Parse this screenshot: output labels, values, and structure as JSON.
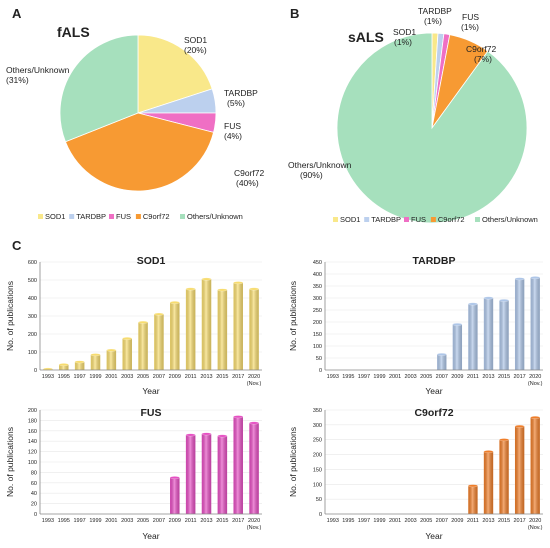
{
  "panels": {
    "a": "A",
    "b": "B",
    "c": "C"
  },
  "chart_data": [
    {
      "type": "pie",
      "title": "fALS",
      "labels": [
        "SOD1",
        "TARDBP",
        "FUS",
        "C9orf72",
        "Others/Unknown"
      ],
      "values": [
        20,
        5,
        4,
        40,
        31
      ],
      "label_values": [
        "(20%)",
        "(5%)",
        "(4%)",
        "(40%)",
        "(31%)"
      ],
      "colors": [
        "#f9e88a",
        "#bcd0ee",
        "#ef6fc4",
        "#f79a33",
        "#a6e0bd"
      ],
      "legend": [
        "SOD1",
        "TARDBP",
        "FUS",
        "C9orf72",
        "Others/Unknown"
      ],
      "legend_position": "bottom"
    },
    {
      "type": "pie",
      "title": "sALS",
      "labels": [
        "SOD1",
        "TARDBP",
        "FUS",
        "C9orf72",
        "Others/Unknown"
      ],
      "values": [
        1,
        1,
        1,
        7,
        90
      ],
      "label_values": [
        "(1%)",
        "(1%)",
        "(1%)",
        "(7%)",
        "(90%)"
      ],
      "colors": [
        "#f9e88a",
        "#bcd0ee",
        "#ef6fc4",
        "#f79a33",
        "#a6e0bd"
      ],
      "legend": [
        "SOD1",
        "TARDBP",
        "FUS",
        "C9orf72",
        "Others/Unknown"
      ],
      "legend_position": "bottom"
    },
    {
      "type": "bar",
      "title": "SOD1",
      "xlabel": "Year",
      "ylabel": "No. of publications",
      "categories": [
        "1993",
        "1995",
        "1997",
        "1999",
        "2001",
        "2003",
        "2005",
        "2007",
        "2009",
        "2011",
        "2013",
        "2015",
        "2017",
        "2020"
      ],
      "category_note": "(Nov.)",
      "values": [
        5,
        30,
        45,
        85,
        110,
        175,
        265,
        310,
        375,
        450,
        505,
        445,
        485,
        450
      ],
      "ylim": [
        0,
        600
      ],
      "yticks": [
        0,
        100,
        200,
        300,
        400,
        500,
        600
      ],
      "color": "#f7dc6f"
    },
    {
      "type": "bar",
      "title": "TARDBP",
      "xlabel": "Year",
      "ylabel": "No. of publications",
      "categories": [
        "1993",
        "1995",
        "1997",
        "1999",
        "2001",
        "2003",
        "2005",
        "2007",
        "2009",
        "2011",
        "2013",
        "2015",
        "2017",
        "2020"
      ],
      "category_note": "(Nov.)",
      "values": [
        0,
        0,
        0,
        0,
        0,
        0,
        0,
        65,
        190,
        275,
        300,
        290,
        380,
        385
      ],
      "ylim": [
        0,
        450
      ],
      "yticks": [
        0,
        50,
        100,
        150,
        200,
        250,
        300,
        350,
        400,
        450
      ],
      "color": "#aec6e8"
    },
    {
      "type": "bar",
      "title": "FUS",
      "xlabel": "Year",
      "ylabel": "No. of publications",
      "categories": [
        "1993",
        "1995",
        "1997",
        "1999",
        "2001",
        "2003",
        "2005",
        "2007",
        "2009",
        "2011",
        "2013",
        "2015",
        "2017",
        "2020"
      ],
      "category_note": "(Nov.)",
      "values": [
        0,
        0,
        0,
        0,
        0,
        0,
        0,
        0,
        70,
        152,
        154,
        150,
        187,
        175
      ],
      "ylim": [
        0,
        200
      ],
      "yticks": [
        0,
        20,
        40,
        60,
        80,
        100,
        120,
        140,
        160,
        180,
        200
      ],
      "color": "#e64fc3"
    },
    {
      "type": "bar",
      "title": "C9orf72",
      "xlabel": "Year",
      "ylabel": "No. of publications",
      "categories": [
        "1993",
        "1995",
        "1997",
        "1999",
        "2001",
        "2003",
        "2005",
        "2007",
        "2009",
        "2011",
        "2013",
        "2015",
        "2017",
        "2020"
      ],
      "category_note": "(Nov.)",
      "values": [
        0,
        0,
        0,
        0,
        0,
        0,
        0,
        0,
        0,
        95,
        210,
        250,
        295,
        325
      ],
      "ylim": [
        0,
        350
      ],
      "yticks": [
        0,
        50,
        100,
        150,
        200,
        250,
        300,
        350
      ],
      "color": "#ef7e2a"
    }
  ]
}
